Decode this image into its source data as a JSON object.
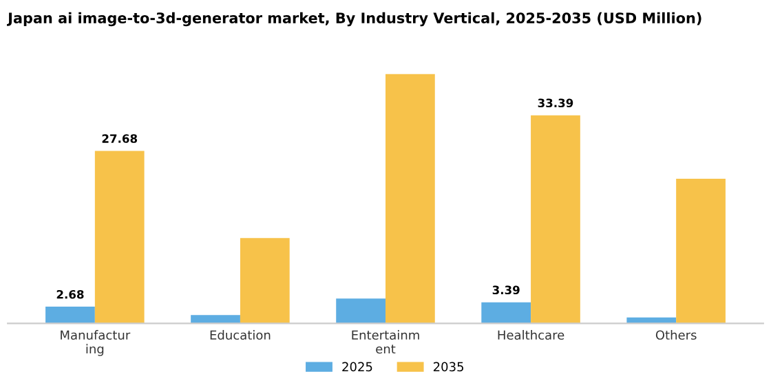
{
  "chart_data": {
    "type": "bar",
    "title": "Japan ai image-to-3d-generator market, By Industry Vertical, 2025-2035 (USD Million)",
    "categories": [
      "Manufacturing",
      "Education",
      "Entertainment",
      "Healthcare",
      "Others"
    ],
    "series": [
      {
        "name": "2025",
        "color": "#5dade2",
        "values": [
          2.68,
          1.33,
          4.0,
          3.39,
          0.95
        ],
        "value_labels": [
          "2.68",
          null,
          null,
          "3.39",
          null
        ]
      },
      {
        "name": "2035",
        "color": "#f7c24a",
        "values": [
          27.68,
          13.7,
          40.0,
          33.39,
          23.2
        ],
        "value_labels": [
          "27.68",
          null,
          null,
          "33.39",
          null
        ]
      }
    ],
    "legend": "bottom",
    "grid": false
  }
}
